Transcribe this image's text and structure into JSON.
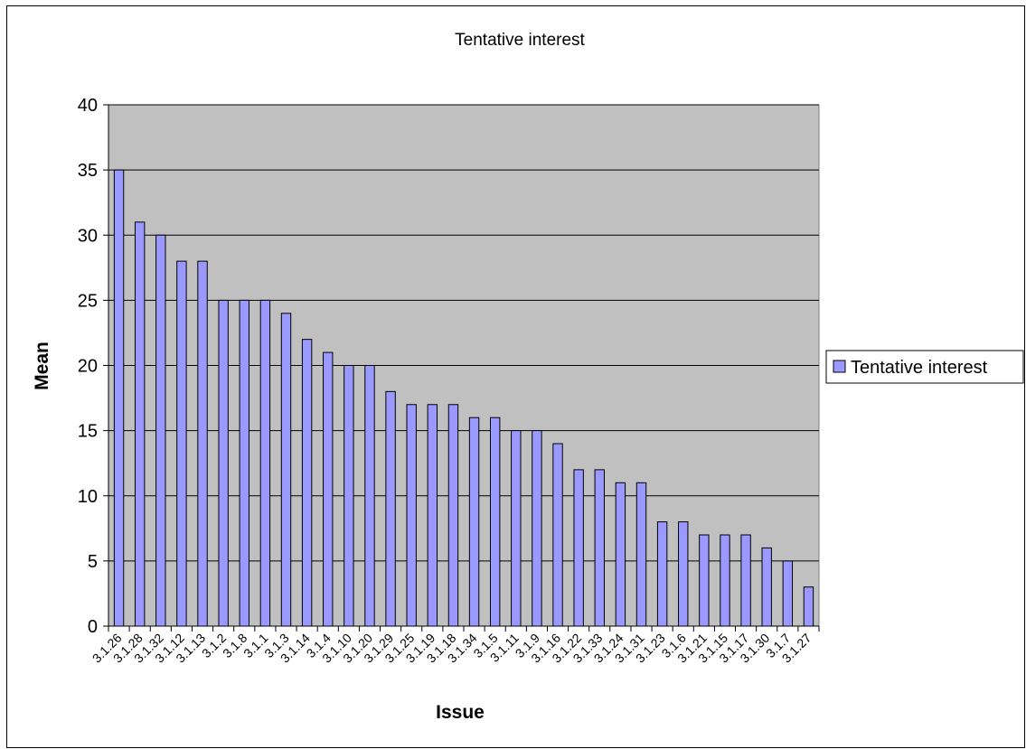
{
  "chart_data": {
    "type": "bar",
    "title": "Tentative interest",
    "xlabel": "Issue",
    "ylabel": "Mean",
    "ylim": [
      0,
      40
    ],
    "yticks": [
      0,
      5,
      10,
      15,
      20,
      25,
      30,
      35,
      40
    ],
    "grid": true,
    "legend_position": "right",
    "categories": [
      "3.1.26",
      "3.1.28",
      "3.1.32",
      "3.1.12",
      "3.1.13",
      "3.1.2",
      "3.1.8",
      "3.1.1",
      "3.1.3",
      "3.1.14",
      "3.1.4",
      "3.1.10",
      "3.1.20",
      "3.1.29",
      "3.1.25",
      "3.1.19",
      "3.1.18",
      "3.1.34",
      "3.1.5",
      "3.1.11",
      "3.1.9",
      "3.1.16",
      "3.1.22",
      "3.1.33",
      "3.1.24",
      "3.1.31",
      "3.1.23",
      "3.1.6",
      "3.1.21",
      "3.1.15",
      "3.1.17",
      "3.1.30",
      "3.1.7",
      "3.1.27"
    ],
    "series": [
      {
        "name": "Tentative interest",
        "color": "#9999ff",
        "values": [
          35,
          31,
          30,
          28,
          28,
          25,
          25,
          25,
          24,
          22,
          21,
          20,
          20,
          18,
          17,
          17,
          17,
          16,
          16,
          15,
          15,
          14,
          12,
          12,
          11,
          11,
          8,
          8,
          7,
          7,
          7,
          6,
          5,
          3
        ]
      }
    ],
    "plot_background": "#c0c0c0"
  }
}
